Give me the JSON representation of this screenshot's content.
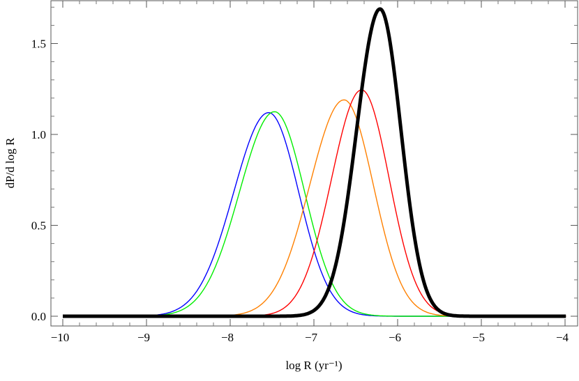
{
  "chart_data": {
    "type": "line",
    "title": "",
    "xlabel": "log R (yr⁻¹)",
    "ylabel": "dP/d log R",
    "xlim": [
      -10,
      -4
    ],
    "ylim": [
      -0.05,
      1.75
    ],
    "x_ticks": [
      -10,
      -9,
      -8,
      -7,
      -6,
      -5,
      -4
    ],
    "x_tick_labels": [
      "−10",
      "−9",
      "−8",
      "−7",
      "−6",
      "−5",
      "−4"
    ],
    "y_ticks": [
      0,
      0.5,
      1.0,
      1.5
    ],
    "y_tick_labels": [
      "0.0",
      "0.5",
      "1.0",
      "1.5"
    ],
    "grid": false,
    "series": [
      {
        "color": "#0000ff",
        "width": "thin",
        "peak_x": -7.54,
        "peak_y": 1.12,
        "sigma_left": 0.42,
        "sigma_right": 0.36
      },
      {
        "color": "#00ee00",
        "width": "thin",
        "peak_x": -7.47,
        "peak_y": 1.125,
        "sigma_left": 0.42,
        "sigma_right": 0.36
      },
      {
        "color": "#ff8000",
        "width": "thin",
        "peak_x": -6.64,
        "peak_y": 1.19,
        "sigma_left": 0.41,
        "sigma_right": 0.35
      },
      {
        "color": "#ff0000",
        "width": "thin",
        "peak_x": -6.43,
        "peak_y": 1.245,
        "sigma_left": 0.36,
        "sigma_right": 0.33
      },
      {
        "color": "#000000",
        "width": "thick",
        "peak_x": -6.21,
        "peak_y": 1.69,
        "sigma_left": 0.28,
        "sigma_right": 0.25
      }
    ]
  }
}
